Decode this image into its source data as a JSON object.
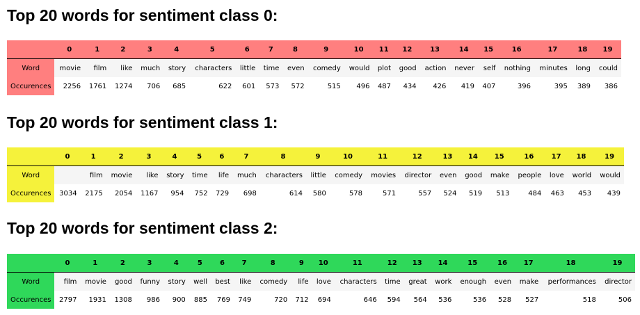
{
  "colors": {
    "class0": "#ff7f7f",
    "class1": "#f5f23b",
    "class2": "#2fd85a"
  },
  "row_labels": {
    "word": "Word",
    "count": "Occurences"
  },
  "indices": [
    "0",
    "1",
    "2",
    "3",
    "4",
    "5",
    "6",
    "7",
    "8",
    "9",
    "10",
    "11",
    "12",
    "13",
    "14",
    "15",
    "16",
    "17",
    "18",
    "19"
  ],
  "sections": [
    {
      "title": "Top 20 words for sentiment class 0:",
      "words": [
        "movie",
        "film",
        "like",
        "much",
        "story",
        "characters",
        "little",
        "time",
        "even",
        "comedy",
        "would",
        "plot",
        "good",
        "action",
        "never",
        "self",
        "nothing",
        "minutes",
        "long",
        "could"
      ],
      "counts": [
        "2256",
        "1761",
        "1274",
        "706",
        "685",
        "622",
        "601",
        "573",
        "572",
        "515",
        "496",
        "487",
        "434",
        "426",
        "419",
        "407",
        "396",
        "395",
        "389",
        "386"
      ]
    },
    {
      "title": "Top 20 words for sentiment class 1:",
      "words": [
        "",
        "film",
        "movie",
        "like",
        "story",
        "time",
        "life",
        "much",
        "characters",
        "little",
        "comedy",
        "movies",
        "director",
        "even",
        "good",
        "make",
        "people",
        "love",
        "world",
        "would"
      ],
      "counts": [
        "3034",
        "2175",
        "2054",
        "1167",
        "954",
        "752",
        "729",
        "698",
        "614",
        "580",
        "578",
        "571",
        "557",
        "524",
        "519",
        "513",
        "484",
        "463",
        "453",
        "439"
      ]
    },
    {
      "title": "Top 20 words for sentiment class 2:",
      "words": [
        "film",
        "movie",
        "good",
        "funny",
        "story",
        "well",
        "best",
        "like",
        "comedy",
        "life",
        "love",
        "characters",
        "time",
        "great",
        "work",
        "enough",
        "even",
        "make",
        "performances",
        "director"
      ],
      "counts": [
        "2797",
        "1931",
        "1308",
        "986",
        "900",
        "885",
        "769",
        "749",
        "720",
        "712",
        "694",
        "646",
        "594",
        "564",
        "536",
        "536",
        "528",
        "527",
        "518",
        "506"
      ]
    }
  ]
}
